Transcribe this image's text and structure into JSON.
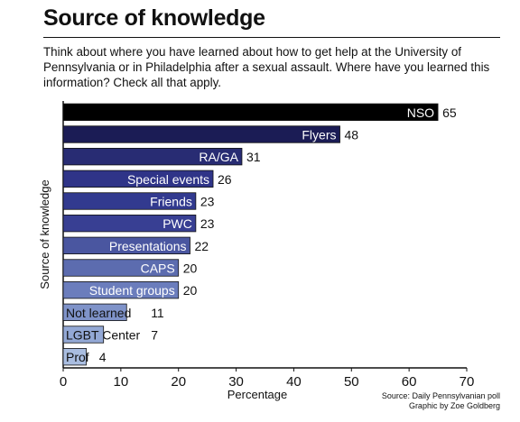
{
  "chart_data": {
    "type": "bar",
    "orientation": "horizontal",
    "title": "Source of knowledge",
    "subtitle": "Think about where you have learned about how to get help at the University of Pennsylvania or in Philadelphia after a sexual assault. Where have you learned this information? Check all that apply.",
    "xlabel": "Percentage",
    "ylabel": "Source of knowledge",
    "xlim": [
      0,
      70
    ],
    "xticks": [
      "0",
      "10",
      "20",
      "30",
      "40",
      "50",
      "60",
      "70"
    ],
    "categories": [
      "NSO",
      "Flyers",
      "RA/GA",
      "Special events",
      "Friends",
      "PWC",
      "Presentations",
      "CAPS",
      "Student groups",
      "Not learned",
      "LGBT Center",
      "Prof"
    ],
    "values": [
      65,
      48,
      31,
      26,
      23,
      23,
      22,
      20,
      20,
      11,
      7,
      4
    ],
    "value_labels": [
      "65",
      "48",
      "31",
      "26",
      "23",
      "23",
      "22",
      "20",
      "20",
      "11",
      "7",
      "4"
    ],
    "colors": [
      "#000000",
      "#1b1c55",
      "#282c73",
      "#2f3488",
      "#323a8f",
      "#383f93",
      "#4a56a0",
      "#5c6caf",
      "#6b7dbc",
      "#7f93c9",
      "#93a8d5",
      "#a9bde0"
    ],
    "grid": false,
    "source": "Source: Daily Pennsylvanian poll",
    "credit": "Graphic by Zoe Goldberg"
  }
}
